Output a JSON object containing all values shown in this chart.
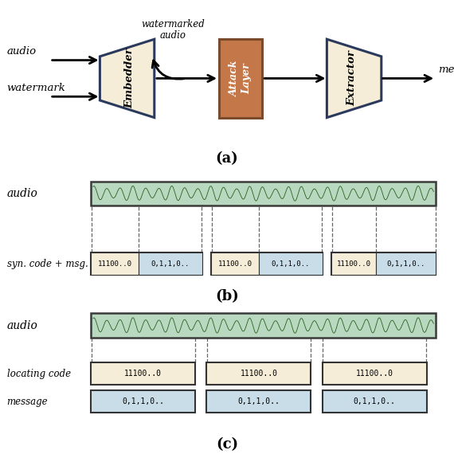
{
  "fig_width": 5.7,
  "fig_height": 5.7,
  "dpi": 100,
  "panel_a": {
    "embedder_label": "Embedder",
    "attack_label": "Attack\nLayer",
    "extractor_label": "Extractor",
    "box_cream": "#F5EDD8",
    "box_border_dark": "#2B3A5C",
    "box_brown": "#C4784A",
    "box_brown_border": "#7A4A2A",
    "caption": "(a)"
  },
  "panel_b": {
    "audio_label": "audio",
    "segment_label": "syn. code + msg.",
    "audio_bg": "#B8D8C0",
    "audio_border": "#3A3A3A",
    "seg1_label": "11100..0",
    "seg2_label": "0,1,1,0..",
    "seg1_bg": "#F5EDD8",
    "seg2_bg": "#C8DDE8",
    "seg_border": "#333333",
    "caption": "(b)"
  },
  "panel_c": {
    "audio_label": "audio",
    "loc_label": "locating code",
    "msg_label": "message",
    "audio_bg": "#B8D8C0",
    "audio_border": "#3A3A3A",
    "loc_bg": "#F5EDD8",
    "msg_bg": "#C8DDE8",
    "seg_border": "#333333",
    "loc_text": "11100..0",
    "msg_text": "0,1,1,0..",
    "caption": "(c)"
  }
}
